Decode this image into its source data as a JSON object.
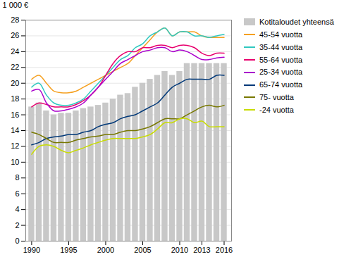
{
  "chart_data": {
    "type": "bar",
    "x": [
      1990,
      1991,
      1992,
      1993,
      1994,
      1995,
      1996,
      1997,
      1998,
      1999,
      2000,
      2001,
      2002,
      2003,
      2004,
      2005,
      2006,
      2007,
      2008,
      2009,
      2010,
      2011,
      2012,
      2013,
      2014,
      2015,
      2016
    ],
    "series": [
      {
        "name": "Kotitaloudet yhteensä",
        "type": "bar",
        "color": "#c8c8c8",
        "values": [
          17.0,
          17.5,
          16.5,
          16.0,
          16.2,
          16.2,
          16.5,
          16.8,
          17.0,
          17.2,
          17.5,
          18.0,
          18.5,
          18.7,
          19.5,
          20.0,
          20.5,
          21.0,
          21.5,
          21.0,
          21.5,
          22.5,
          22.5,
          22.5,
          22.5,
          22.5,
          22.5
        ]
      },
      {
        "name": "45-54 vuotta",
        "type": "line",
        "color": "#f5a020",
        "values": [
          20.5,
          21.0,
          20.0,
          19.0,
          18.8,
          18.8,
          19.0,
          19.5,
          20.0,
          20.5,
          21.0,
          21.5,
          22.0,
          22.5,
          23.5,
          24.5,
          25.5,
          26.5,
          27.0,
          26.0,
          26.5,
          26.5,
          26.5,
          26.0,
          25.8,
          25.8,
          25.8
        ]
      },
      {
        "name": "35-44 vuotta",
        "type": "line",
        "color": "#30c8c0",
        "values": [
          19.5,
          20.0,
          18.5,
          17.5,
          17.2,
          17.2,
          17.5,
          18.0,
          19.0,
          20.0,
          21.0,
          22.0,
          23.0,
          23.5,
          24.5,
          25.0,
          26.0,
          26.5,
          27.0,
          26.0,
          26.5,
          26.5,
          26.0,
          26.0,
          25.8,
          26.0,
          26.2
        ]
      },
      {
        "name": "55-64 vuotta",
        "type": "line",
        "color": "#e8006e",
        "values": [
          17.0,
          17.5,
          17.3,
          17.0,
          17.0,
          17.0,
          17.3,
          17.8,
          18.5,
          19.5,
          21.0,
          22.5,
          23.5,
          24.0,
          24.0,
          24.5,
          24.5,
          24.8,
          24.8,
          24.5,
          24.8,
          24.8,
          24.5,
          23.8,
          23.5,
          23.8,
          23.8
        ]
      },
      {
        "name": "25-34 vuotta",
        "type": "line",
        "color": "#aa00cc",
        "values": [
          19.0,
          19.2,
          17.5,
          16.5,
          16.5,
          16.7,
          17.0,
          17.5,
          18.5,
          19.5,
          20.5,
          21.5,
          22.5,
          23.0,
          23.5,
          24.0,
          24.2,
          24.5,
          24.5,
          24.0,
          24.2,
          24.0,
          23.5,
          23.0,
          23.0,
          23.2,
          23.3
        ]
      },
      {
        "name": "65-74 vuotta",
        "type": "line",
        "color": "#003878",
        "values": [
          12.2,
          12.5,
          13.0,
          13.2,
          13.3,
          13.5,
          13.5,
          13.8,
          14.0,
          14.5,
          14.8,
          15.0,
          15.5,
          15.8,
          16.0,
          16.5,
          17.0,
          17.5,
          18.5,
          19.5,
          20.0,
          20.5,
          20.5,
          20.5,
          20.5,
          21.0,
          21.0
        ]
      },
      {
        "name": "75- vuotta",
        "type": "line",
        "color": "#787800",
        "values": [
          13.8,
          13.5,
          13.0,
          12.5,
          12.5,
          12.5,
          12.8,
          13.0,
          13.2,
          13.3,
          13.5,
          13.5,
          13.8,
          14.0,
          14.0,
          14.2,
          14.5,
          15.0,
          15.5,
          15.5,
          15.5,
          16.0,
          16.5,
          17.0,
          17.2,
          17.0,
          17.2
        ]
      },
      {
        "name": "-24 vuotta",
        "type": "line",
        "color": "#c8dc00",
        "values": [
          11.0,
          12.0,
          12.2,
          12.0,
          11.5,
          11.2,
          11.5,
          11.8,
          12.2,
          12.5,
          12.8,
          13.0,
          13.0,
          13.0,
          13.0,
          13.2,
          13.5,
          14.2,
          15.0,
          15.0,
          15.5,
          15.5,
          15.0,
          15.2,
          14.5,
          14.5,
          14.5
        ]
      }
    ],
    "y_label": "1 000 €",
    "xlim": [
      1989.2,
      2017.0
    ],
    "xticks": [
      1990,
      1995,
      2000,
      2005,
      2010,
      2013,
      2016
    ],
    "ylim": [
      0,
      28
    ],
    "yticks": [
      0,
      2,
      4,
      6,
      8,
      10,
      12,
      14,
      16,
      18,
      20,
      22,
      24,
      26,
      28
    ],
    "grid": true,
    "legend": "right"
  }
}
